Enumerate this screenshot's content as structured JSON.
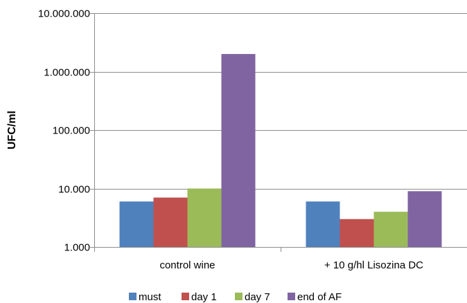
{
  "chart_data": {
    "type": "bar",
    "title": "",
    "xlabel": "",
    "ylabel": "UFC/ml",
    "y_scale": "log",
    "ylim": [
      1000,
      10000000
    ],
    "y_ticks": [
      1000,
      10000,
      100000,
      1000000,
      10000000
    ],
    "y_tick_labels": [
      "1.000",
      "10.000",
      "100.000",
      "1.000.000",
      "10.000.000"
    ],
    "grid": "horizontal",
    "legend_position": "bottom",
    "categories": [
      "control wine",
      "+ 10 g/hl Lisozina DC"
    ],
    "series": [
      {
        "name": "must",
        "color": "#4f81bd",
        "values": [
          6000,
          6000
        ]
      },
      {
        "name": "day 1",
        "color": "#c0504d",
        "values": [
          7000,
          3000
        ]
      },
      {
        "name": "day 7",
        "color": "#9bbb59",
        "values": [
          10000,
          4000
        ]
      },
      {
        "name": "end of AF",
        "color": "#8064a2",
        "values": [
          2000000,
          9000
        ]
      }
    ]
  }
}
